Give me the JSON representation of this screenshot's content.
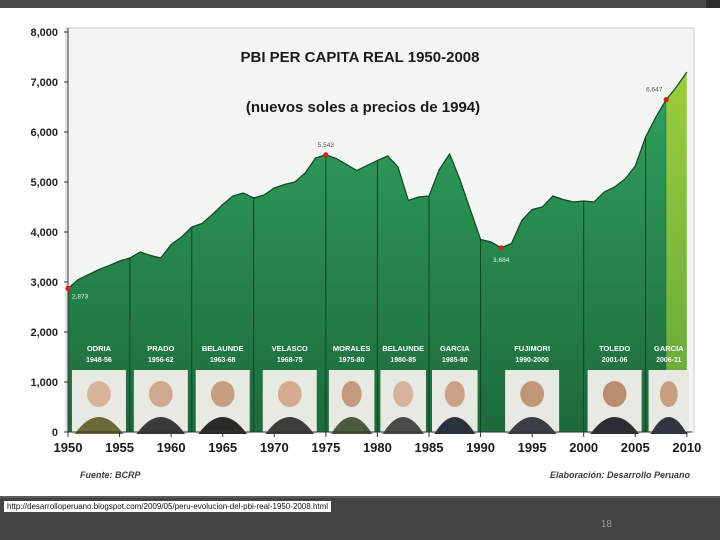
{
  "colors": {
    "area_dark": "#1f6e3f",
    "area_mid": "#2f9a5a",
    "area_light": "#3fb56f",
    "area_recent": "#8dc63f",
    "band_label": "#ffffff",
    "marker": "#d62020"
  },
  "footer": {
    "url": "http://desarrolloperuano.blogspot.com/2009/05/peru-evolucion-del-pbi-real-1950-2008.html",
    "slide_number": "18"
  },
  "chart_data": {
    "type": "area",
    "title": "PBI PER CAPITA REAL 1950-2008",
    "subtitle": "(nuevos soles a precios de 1994)",
    "xlabel": "",
    "ylabel": "",
    "xlim": [
      1950,
      2010.5
    ],
    "ylim": [
      0,
      8000
    ],
    "x_ticks": [
      "1950",
      "1955",
      "1960",
      "1965",
      "1970",
      "1975",
      "1980",
      "1985",
      "1990",
      "1995",
      "2000",
      "2005",
      "2010"
    ],
    "y_ticks": [
      "0",
      "1,000",
      "2,000",
      "3,000",
      "4,000",
      "5,000",
      "6,000",
      "7,000",
      "8,000"
    ],
    "grid": false,
    "x": [
      1950,
      1951,
      1952,
      1953,
      1954,
      1955,
      1956,
      1957,
      1958,
      1959,
      1960,
      1961,
      1962,
      1963,
      1964,
      1965,
      1966,
      1967,
      1968,
      1969,
      1970,
      1971,
      1972,
      1973,
      1974,
      1975,
      1976,
      1977,
      1978,
      1979,
      1980,
      1981,
      1982,
      1983,
      1984,
      1985,
      1986,
      1987,
      1988,
      1989,
      1990,
      1991,
      1992,
      1993,
      1994,
      1995,
      1996,
      1997,
      1998,
      1999,
      2000,
      2001,
      2002,
      2003,
      2004,
      2005,
      2006,
      2007,
      2008,
      2009,
      2010
    ],
    "values": [
      2873,
      3050,
      3150,
      3250,
      3330,
      3420,
      3480,
      3600,
      3530,
      3480,
      3750,
      3900,
      4100,
      4170,
      4350,
      4550,
      4720,
      4780,
      4680,
      4740,
      4880,
      4950,
      5000,
      5180,
      5480,
      5543,
      5470,
      5350,
      5230,
      5330,
      5430,
      5520,
      5300,
      4630,
      4700,
      4720,
      5250,
      5560,
      5050,
      4450,
      3850,
      3800,
      3684,
      3770,
      4230,
      4450,
      4500,
      4720,
      4650,
      4600,
      4620,
      4600,
      4800,
      4900,
      5060,
      5320,
      5900,
      6300,
      6647,
      6900,
      7200
    ],
    "annotations": [
      {
        "label": "2,873",
        "x": 1950,
        "y": 2873
      },
      {
        "label": "5,543",
        "x": 1975,
        "y": 5543
      },
      {
        "label": "3,684",
        "x": 1992,
        "y": 3684
      },
      {
        "label": "6,647",
        "x": 2008,
        "y": 6647
      }
    ],
    "periods": [
      {
        "name": "ODRIA",
        "years": "1948-56",
        "start": 1950,
        "end": 1956
      },
      {
        "name": "PRADO",
        "years": "1956-62",
        "start": 1956,
        "end": 1962
      },
      {
        "name": "BELAUNDE",
        "years": "1963-68",
        "start": 1962,
        "end": 1968
      },
      {
        "name": "VELASCO",
        "years": "1968-75",
        "start": 1968,
        "end": 1975
      },
      {
        "name": "MORALES",
        "years": "1975-80",
        "start": 1975,
        "end": 1980
      },
      {
        "name": "BELAUNDE",
        "years": "1980-85",
        "start": 1980,
        "end": 1985
      },
      {
        "name": "GARCIA",
        "years": "1985-90",
        "start": 1985,
        "end": 1990
      },
      {
        "name": "FUJIMORI",
        "years": "1990-2000",
        "start": 1990,
        "end": 2000
      },
      {
        "name": "TOLEDO",
        "years": "2001-06",
        "start": 2000,
        "end": 2006
      },
      {
        "name": "GARCIA",
        "years": "2006-11",
        "start": 2006,
        "end": 2010.5
      }
    ],
    "source": "Fuente: BCRP",
    "credit": "Elaboración: Desarrollo Peruano"
  }
}
